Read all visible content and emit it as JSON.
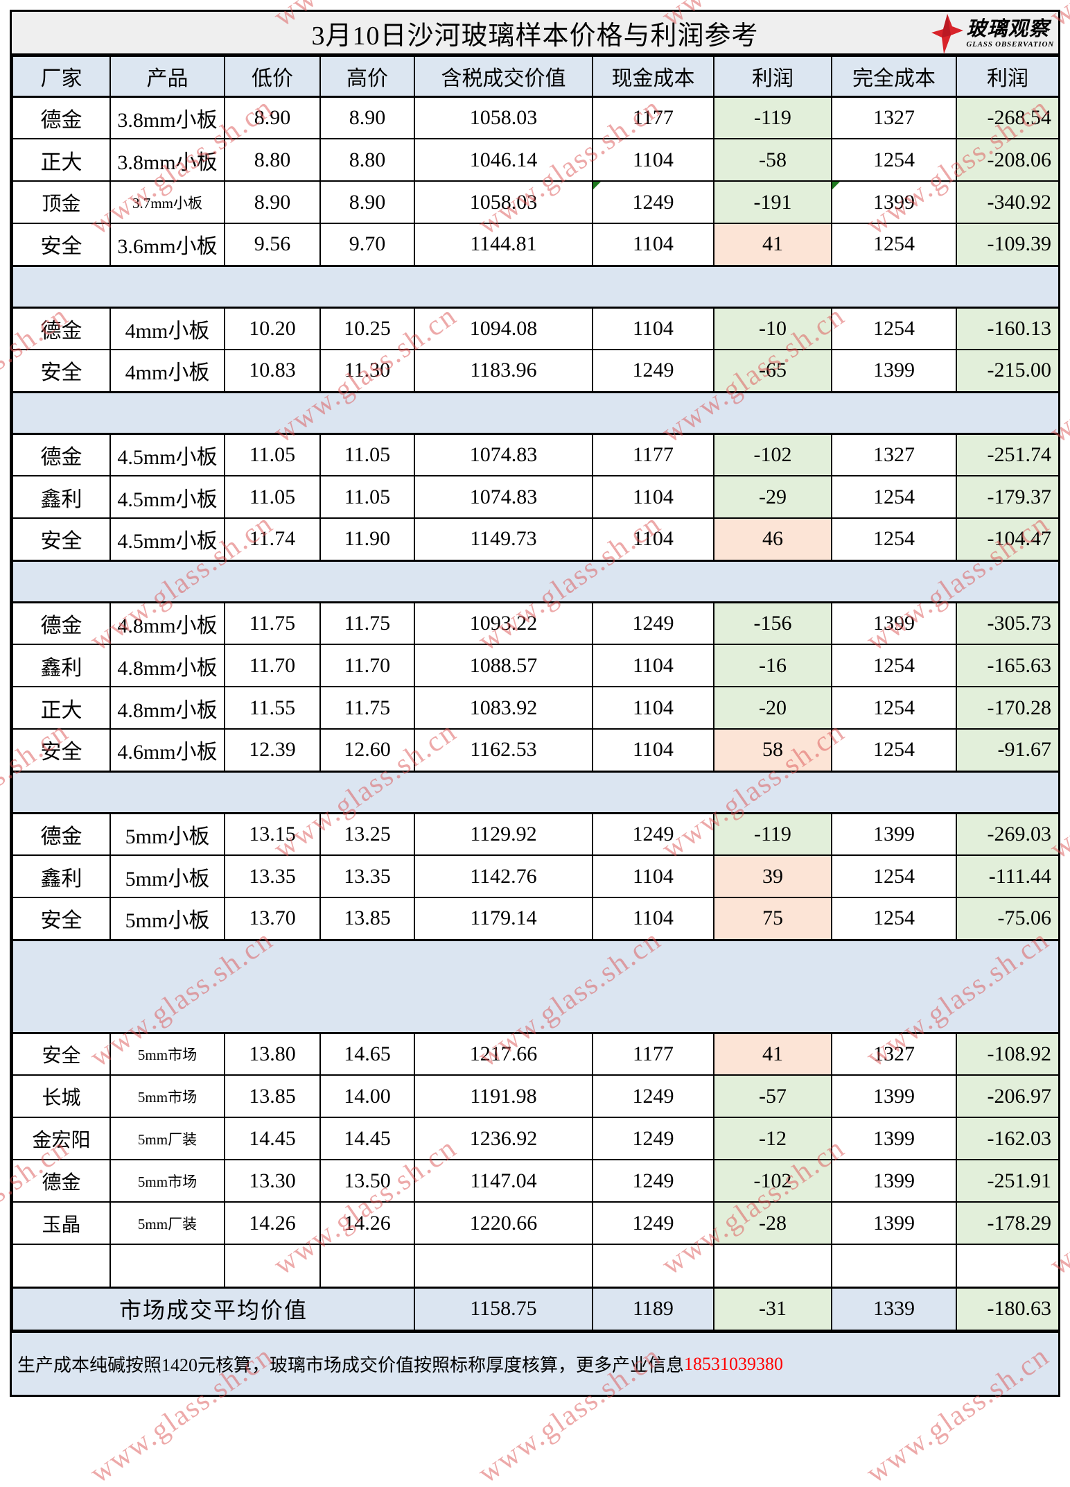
{
  "page": {
    "title": "3月10日沙河玻璃样本价格与利润参考",
    "logo": {
      "cn": "玻璃观察",
      "en": "GLASS OBSERVATION"
    },
    "watermark": "www.glass.sh.cn",
    "footer": {
      "text": "生产成本纯碱按照1420元核算，玻璃市场成交价值按照标称厚度核算，更多产业信息",
      "phone": "18531039380"
    }
  },
  "colors": {
    "header_bg": "#dce6f1",
    "band_bg": "#dbe5f1",
    "negative_bg": "#e2efda",
    "positive_bg": "#fce4d6",
    "title_bg": "#efefef",
    "logo_red": "#d8232a",
    "phone_red": "#ff0000",
    "marker_green": "#1f7a1f"
  },
  "table": {
    "columns": [
      "厂家",
      "产品",
      "低价",
      "高价",
      "含税成交价值",
      "现金成本",
      "利润",
      "完全成本",
      "利润"
    ],
    "sections": [
      {
        "gap_after": "blue",
        "rows": [
          {
            "factory": "德金",
            "product": "3.8mm小板",
            "low": "8.90",
            "high": "8.90",
            "value": "1058.03",
            "cash_cost": "1177",
            "cash_profit": "-119",
            "full_cost": "1327",
            "full_profit": "-268.54"
          },
          {
            "factory": "正大",
            "product": "3.8mm小板",
            "low": "8.80",
            "high": "8.80",
            "value": "1046.14",
            "cash_cost": "1104",
            "cash_profit": "-58",
            "full_cost": "1254",
            "full_profit": "-208.06"
          },
          {
            "factory": "顶金",
            "product": "3.7mm小板",
            "low": "8.90",
            "high": "8.90",
            "value": "1058.03",
            "cash_cost": "1249",
            "cash_profit": "-191",
            "full_cost": "1399",
            "full_profit": "-340.92",
            "small": true,
            "corner_markers": true
          },
          {
            "factory": "安全",
            "product": "3.6mm小板",
            "low": "9.56",
            "high": "9.70",
            "value": "1144.81",
            "cash_cost": "1104",
            "cash_profit": "41",
            "full_cost": "1254",
            "full_profit": "-109.39"
          }
        ]
      },
      {
        "gap_after": "blue",
        "rows": [
          {
            "factory": "德金",
            "product": "4mm小板",
            "low": "10.20",
            "high": "10.25",
            "value": "1094.08",
            "cash_cost": "1104",
            "cash_profit": "-10",
            "full_cost": "1254",
            "full_profit": "-160.13"
          },
          {
            "factory": "安全",
            "product": "4mm小板",
            "low": "10.83",
            "high": "11.30",
            "value": "1183.96",
            "cash_cost": "1249",
            "cash_profit": "-65",
            "full_cost": "1399",
            "full_profit": "-215.00"
          }
        ]
      },
      {
        "gap_after": "blue",
        "rows": [
          {
            "factory": "德金",
            "product": "4.5mm小板",
            "low": "11.05",
            "high": "11.05",
            "value": "1074.83",
            "cash_cost": "1177",
            "cash_profit": "-102",
            "full_cost": "1327",
            "full_profit": "-251.74"
          },
          {
            "factory": "鑫利",
            "product": "4.5mm小板",
            "low": "11.05",
            "high": "11.05",
            "value": "1074.83",
            "cash_cost": "1104",
            "cash_profit": "-29",
            "full_cost": "1254",
            "full_profit": "-179.37"
          },
          {
            "factory": "安全",
            "product": "4.5mm小板",
            "low": "11.74",
            "high": "11.90",
            "value": "1149.73",
            "cash_cost": "1104",
            "cash_profit": "46",
            "full_cost": "1254",
            "full_profit": "-104.47"
          }
        ]
      },
      {
        "gap_after": "blue",
        "rows": [
          {
            "factory": "德金",
            "product": "4.8mm小板",
            "low": "11.75",
            "high": "11.75",
            "value": "1093.22",
            "cash_cost": "1249",
            "cash_profit": "-156",
            "full_cost": "1399",
            "full_profit": "-305.73"
          },
          {
            "factory": "鑫利",
            "product": "4.8mm小板",
            "low": "11.70",
            "high": "11.70",
            "value": "1088.57",
            "cash_cost": "1104",
            "cash_profit": "-16",
            "full_cost": "1254",
            "full_profit": "-165.63"
          },
          {
            "factory": "正大",
            "product": "4.8mm小板",
            "low": "11.55",
            "high": "11.75",
            "value": "1083.92",
            "cash_cost": "1104",
            "cash_profit": "-20",
            "full_cost": "1254",
            "full_profit": "-170.28"
          },
          {
            "factory": "安全",
            "product": "4.6mm小板",
            "low": "12.39",
            "high": "12.60",
            "value": "1162.53",
            "cash_cost": "1104",
            "cash_profit": "58",
            "full_cost": "1254",
            "full_profit": "-91.67"
          }
        ]
      },
      {
        "gap_after": "blue-tall",
        "rows": [
          {
            "factory": "德金",
            "product": "5mm小板",
            "low": "13.15",
            "high": "13.25",
            "value": "1129.92",
            "cash_cost": "1249",
            "cash_profit": "-119",
            "full_cost": "1399",
            "full_profit": "-269.03"
          },
          {
            "factory": "鑫利",
            "product": "5mm小板",
            "low": "13.35",
            "high": "13.35",
            "value": "1142.76",
            "cash_cost": "1104",
            "cash_profit": "39",
            "full_cost": "1254",
            "full_profit": "-111.44"
          },
          {
            "factory": "安全",
            "product": "5mm小板",
            "low": "13.70",
            "high": "13.85",
            "value": "1179.14",
            "cash_cost": "1104",
            "cash_profit": "75",
            "full_cost": "1254",
            "full_profit": "-75.06"
          }
        ]
      },
      {
        "gap_after": "white",
        "rows": [
          {
            "factory": "安全",
            "product": "5mm市场",
            "low": "13.80",
            "high": "14.65",
            "value": "1217.66",
            "cash_cost": "1177",
            "cash_profit": "41",
            "full_cost": "1327",
            "full_profit": "-108.92",
            "small": true
          },
          {
            "factory": "长城",
            "product": "5mm市场",
            "low": "13.85",
            "high": "14.00",
            "value": "1191.98",
            "cash_cost": "1249",
            "cash_profit": "-57",
            "full_cost": "1399",
            "full_profit": "-206.97",
            "small": true
          },
          {
            "factory": "金宏阳",
            "product": "5mm厂装",
            "low": "14.45",
            "high": "14.45",
            "value": "1236.92",
            "cash_cost": "1249",
            "cash_profit": "-12",
            "full_cost": "1399",
            "full_profit": "-162.03",
            "small": true
          },
          {
            "factory": "德金",
            "product": "5mm市场",
            "low": "13.30",
            "high": "13.50",
            "value": "1147.04",
            "cash_cost": "1249",
            "cash_profit": "-102",
            "full_cost": "1399",
            "full_profit": "-251.91",
            "small": true
          },
          {
            "factory": "玉晶",
            "product": "5mm厂装",
            "low": "14.26",
            "high": "14.26",
            "value": "1220.66",
            "cash_cost": "1249",
            "cash_profit": "-28",
            "full_cost": "1399",
            "full_profit": "-178.29",
            "small": true
          }
        ]
      }
    ],
    "summary": {
      "label": "市场成交平均价值",
      "value": "1158.75",
      "cash_cost": "1189",
      "cash_profit": "-31",
      "full_cost": "1339",
      "full_profit": "-180.63"
    }
  }
}
